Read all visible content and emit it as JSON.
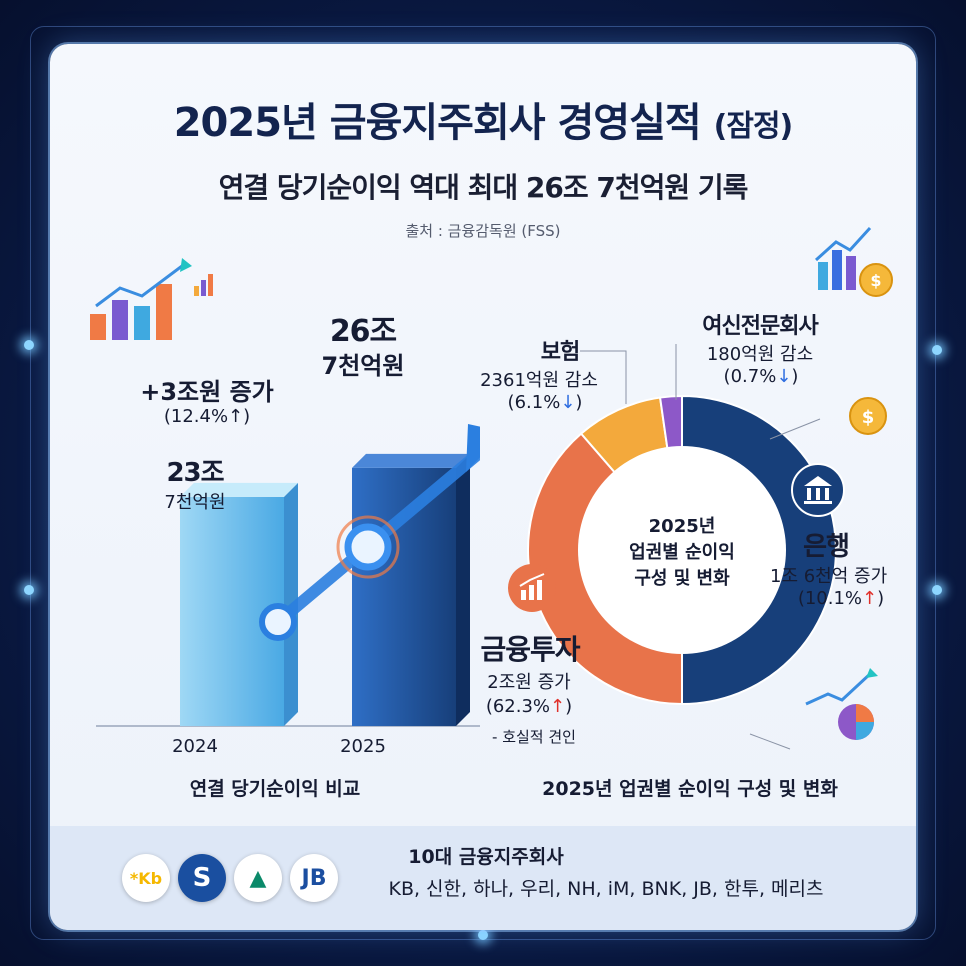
{
  "header": {
    "title_main": "2025년 금융지주회사 경영실적",
    "title_paren": "(잠정)",
    "subtitle": "연결 당기순이익 역대 최대 26조 7천억원 기록",
    "source": "출처 : 금융감독원 (FSS)"
  },
  "chart_data": [
    {
      "type": "bar",
      "title": "연결 당기순이익 비교",
      "categories": [
        "2024",
        "2025"
      ],
      "values": [
        23.7,
        26.7
      ],
      "value_labels": [
        {
          "line1": "23조",
          "line2": "7천억원"
        },
        {
          "line1": "26조",
          "line2": "7천억원"
        }
      ],
      "change_label": "+3조원 증가",
      "change_pct": "(12.4%↑)"
    },
    {
      "type": "pie",
      "title": "2025년 업권별 순이익 구성 및 변화",
      "center_label": [
        "2025년",
        "업권별 순이익",
        "구성 및 변화"
      ],
      "slices": [
        {
          "name": "은행",
          "value": 44,
          "color": "#173f7a",
          "change": "1조 6천억 증가",
          "pct": "(10.1%",
          "dir": "up"
        },
        {
          "name": "금융투자",
          "value": 34,
          "color": "#e8734a",
          "change": "2조원 증가",
          "pct": "(62.3%",
          "dir": "up",
          "note": "- 호실적 견인"
        },
        {
          "name": "보험",
          "value": 8,
          "color": "#f3a93c",
          "change": "2361억원 감소",
          "pct": "(6.1%",
          "dir": "down"
        },
        {
          "name": "여신전문회사",
          "value": 2,
          "color": "#8d58c8",
          "change": "180억원 감소",
          "pct": "(0.7%",
          "dir": "down"
        }
      ]
    }
  ],
  "footer": {
    "heading": "10대 금융지주회사",
    "companies": "KB, 신한, 하나, 우리, NH, iM, BNK, JB, 한투, 메리츠",
    "logos": [
      {
        "name": "kb-logo",
        "text": "*Kb",
        "color": "#f5b800"
      },
      {
        "name": "shinhan-logo",
        "text": "S",
        "color": "#1a4fa0"
      },
      {
        "name": "hana-logo",
        "text": "▲",
        "color": "#0b8a6a"
      },
      {
        "name": "jb-logo",
        "text": "JB",
        "color": "#1b4ea0"
      }
    ]
  },
  "colors": {
    "bank": "#173f7a",
    "invest": "#e8734a",
    "insurance": "#f3a93c",
    "card": "#8d58c8",
    "up": "#e0302a",
    "down": "#2f6ee0"
  }
}
